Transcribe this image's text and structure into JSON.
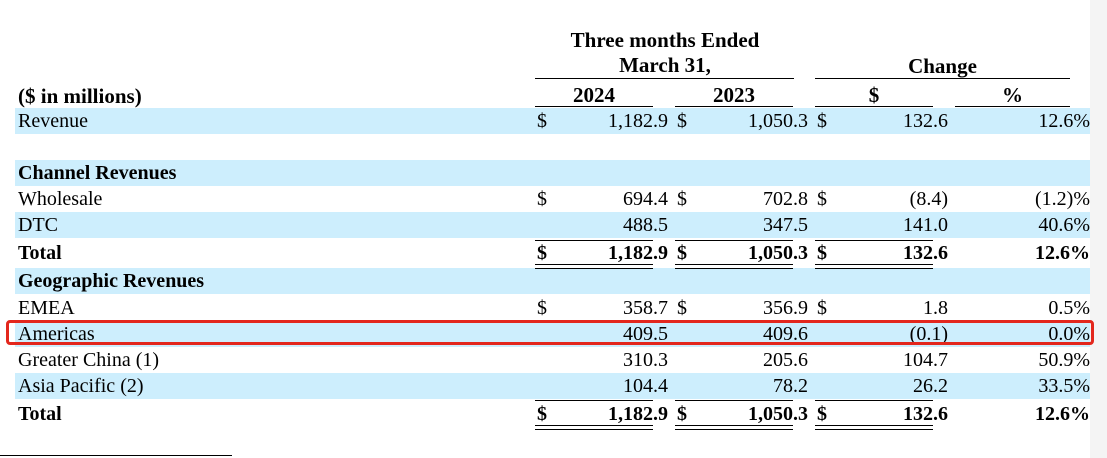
{
  "header": {
    "period_line1": "Three months Ended",
    "period_line2": "March 31,",
    "change": "Change",
    "units": "($ in millions)",
    "col_2024": "2024",
    "col_2023": "2023",
    "col_dollar": "$",
    "col_pct": "%"
  },
  "rows": [
    {
      "label": "Revenue",
      "shaded": true,
      "bold": false,
      "d1": "$",
      "v2024": "1,182.9",
      "d2": "$",
      "v2023": "1,050.3",
      "d3": "$",
      "chg": "132.6",
      "pct": "12.6%"
    },
    {
      "label": "",
      "shaded": false,
      "bold": false,
      "d1": "",
      "v2024": "",
      "d2": "",
      "v2023": "",
      "d3": "",
      "chg": "",
      "pct": ""
    },
    {
      "label": "Channel Revenues",
      "shaded": true,
      "bold": true,
      "d1": "",
      "v2024": "",
      "d2": "",
      "v2023": "",
      "d3": "",
      "chg": "",
      "pct": ""
    },
    {
      "label": "Wholesale",
      "shaded": false,
      "bold": false,
      "d1": "$",
      "v2024": "694.4",
      "d2": "$",
      "v2023": "702.8",
      "d3": "$",
      "chg": "(8.4)",
      "pct": "(1.2)%"
    },
    {
      "label": "DTC",
      "shaded": true,
      "bold": false,
      "d1": "",
      "v2024": "488.5",
      "d2": "",
      "v2023": "347.5",
      "d3": "",
      "chg": "141.0",
      "pct": "40.6%"
    },
    {
      "label": "Total",
      "shaded": false,
      "bold": true,
      "d1": "$",
      "v2024": "1,182.9",
      "d2": "$",
      "v2023": "1,050.3",
      "d3": "$",
      "chg": "132.6",
      "pct": "12.6%"
    },
    {
      "label": "Geographic Revenues",
      "shaded": true,
      "bold": true,
      "d1": "",
      "v2024": "",
      "d2": "",
      "v2023": "",
      "d3": "",
      "chg": "",
      "pct": ""
    },
    {
      "label": "EMEA",
      "shaded": false,
      "bold": false,
      "d1": "$",
      "v2024": "358.7",
      "d2": "$",
      "v2023": "356.9",
      "d3": "$",
      "chg": "1.8",
      "pct": "0.5%"
    },
    {
      "label": "Americas",
      "shaded": true,
      "bold": false,
      "d1": "",
      "v2024": "409.5",
      "d2": "",
      "v2023": "409.6",
      "d3": "",
      "chg": "(0.1)",
      "pct": "0.0%"
    },
    {
      "label": "Greater China (1)",
      "shaded": false,
      "bold": false,
      "d1": "",
      "v2024": "310.3",
      "d2": "",
      "v2023": "205.6",
      "d3": "",
      "chg": "104.7",
      "pct": "50.9%"
    },
    {
      "label": "Asia Pacific (2)",
      "shaded": true,
      "bold": false,
      "d1": "",
      "v2024": "104.4",
      "d2": "",
      "v2023": "78.2",
      "d3": "",
      "chg": "26.2",
      "pct": "33.5%"
    },
    {
      "label": "Total",
      "shaded": false,
      "bold": true,
      "d1": "$",
      "v2024": "1,182.9",
      "d2": "$",
      "v2023": "1,050.3",
      "d3": "$",
      "chg": "132.6",
      "pct": "12.6%"
    }
  ],
  "colors": {
    "row_shade": "#cdeefd",
    "highlight_border": "#e3271d"
  }
}
